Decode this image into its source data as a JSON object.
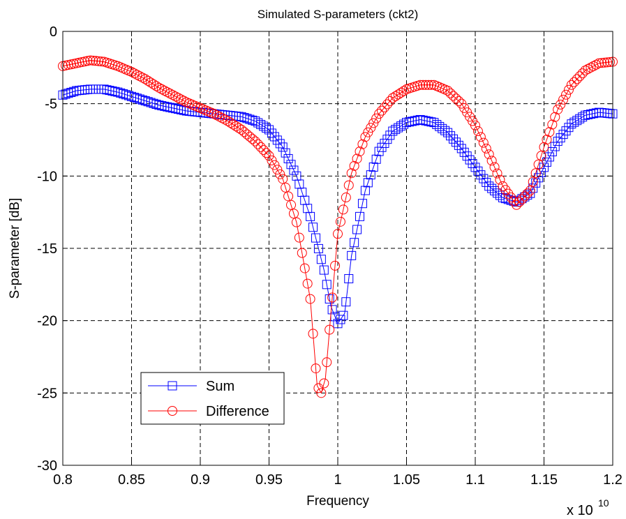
{
  "chart_data": {
    "type": "line",
    "title": "Simulated S-parameters (ckt2)",
    "xlabel": "Frequency",
    "ylabel": "S-parameter [dB]",
    "x_multiplier": "x 10",
    "x_multiplier_exponent": "10",
    "xlim": [
      0.8,
      1.2
    ],
    "ylim": [
      -30,
      0
    ],
    "xticks": [
      0.8,
      0.85,
      0.9,
      0.95,
      1.0,
      1.05,
      1.1,
      1.15,
      1.2
    ],
    "xtick_labels": [
      "0.8",
      "0.85",
      "0.9",
      "0.95",
      "1",
      "1.05",
      "1.1",
      "1.15",
      "1.2"
    ],
    "yticks": [
      0,
      -5,
      -10,
      -15,
      -20,
      -25,
      -30
    ],
    "ytick_labels": [
      "0",
      "-5",
      "-10",
      "-15",
      "-20",
      "-25",
      "-30"
    ],
    "grid": true,
    "legend_position": "bottom-left",
    "series": [
      {
        "name": "Sum",
        "color": "#0000ff",
        "marker": "square",
        "points": [
          [
            0.8,
            -4.4
          ],
          [
            0.81,
            -4.1
          ],
          [
            0.82,
            -4.0
          ],
          [
            0.83,
            -4.0
          ],
          [
            0.84,
            -4.2
          ],
          [
            0.85,
            -4.5
          ],
          [
            0.86,
            -4.8
          ],
          [
            0.87,
            -5.1
          ],
          [
            0.88,
            -5.3
          ],
          [
            0.89,
            -5.5
          ],
          [
            0.9,
            -5.6
          ],
          [
            0.91,
            -5.7
          ],
          [
            0.92,
            -5.8
          ],
          [
            0.93,
            -5.9
          ],
          [
            0.94,
            -6.2
          ],
          [
            0.95,
            -6.8
          ],
          [
            0.96,
            -8.0
          ],
          [
            0.97,
            -10.0
          ],
          [
            0.98,
            -12.8
          ],
          [
            0.99,
            -16.5
          ],
          [
            0.995,
            -19.0
          ],
          [
            1.0,
            -20.2
          ],
          [
            1.005,
            -19.5
          ],
          [
            1.01,
            -15.5
          ],
          [
            1.02,
            -11.0
          ],
          [
            1.03,
            -8.3
          ],
          [
            1.04,
            -6.9
          ],
          [
            1.05,
            -6.3
          ],
          [
            1.06,
            -6.1
          ],
          [
            1.07,
            -6.3
          ],
          [
            1.08,
            -7.0
          ],
          [
            1.09,
            -8.1
          ],
          [
            1.1,
            -9.4
          ],
          [
            1.11,
            -10.7
          ],
          [
            1.12,
            -11.5
          ],
          [
            1.13,
            -11.8
          ],
          [
            1.14,
            -11.2
          ],
          [
            1.15,
            -9.4
          ],
          [
            1.16,
            -7.6
          ],
          [
            1.17,
            -6.4
          ],
          [
            1.18,
            -5.8
          ],
          [
            1.19,
            -5.6
          ],
          [
            1.2,
            -5.7
          ]
        ]
      },
      {
        "name": "Difference",
        "color": "#ff0000",
        "marker": "circle",
        "points": [
          [
            0.8,
            -2.4
          ],
          [
            0.81,
            -2.2
          ],
          [
            0.82,
            -2.0
          ],
          [
            0.83,
            -2.1
          ],
          [
            0.84,
            -2.4
          ],
          [
            0.85,
            -2.8
          ],
          [
            0.86,
            -3.3
          ],
          [
            0.87,
            -3.9
          ],
          [
            0.88,
            -4.4
          ],
          [
            0.89,
            -4.9
          ],
          [
            0.9,
            -5.3
          ],
          [
            0.91,
            -5.7
          ],
          [
            0.92,
            -6.2
          ],
          [
            0.93,
            -6.8
          ],
          [
            0.94,
            -7.6
          ],
          [
            0.95,
            -8.6
          ],
          [
            0.96,
            -10.2
          ],
          [
            0.97,
            -13.2
          ],
          [
            0.98,
            -18.5
          ],
          [
            0.985,
            -24.5
          ],
          [
            0.988,
            -25.0
          ],
          [
            0.991,
            -24.0
          ],
          [
            0.995,
            -19.5
          ],
          [
            1.0,
            -14.0
          ],
          [
            1.01,
            -9.8
          ],
          [
            1.02,
            -7.3
          ],
          [
            1.03,
            -5.7
          ],
          [
            1.04,
            -4.6
          ],
          [
            1.05,
            -4.0
          ],
          [
            1.06,
            -3.7
          ],
          [
            1.07,
            -3.7
          ],
          [
            1.08,
            -4.1
          ],
          [
            1.09,
            -5.0
          ],
          [
            1.1,
            -6.5
          ],
          [
            1.11,
            -8.5
          ],
          [
            1.12,
            -10.7
          ],
          [
            1.13,
            -12.0
          ],
          [
            1.14,
            -11.0
          ],
          [
            1.15,
            -8.0
          ],
          [
            1.16,
            -5.4
          ],
          [
            1.17,
            -3.7
          ],
          [
            1.18,
            -2.7
          ],
          [
            1.19,
            -2.2
          ],
          [
            1.2,
            -2.1
          ]
        ]
      }
    ]
  }
}
